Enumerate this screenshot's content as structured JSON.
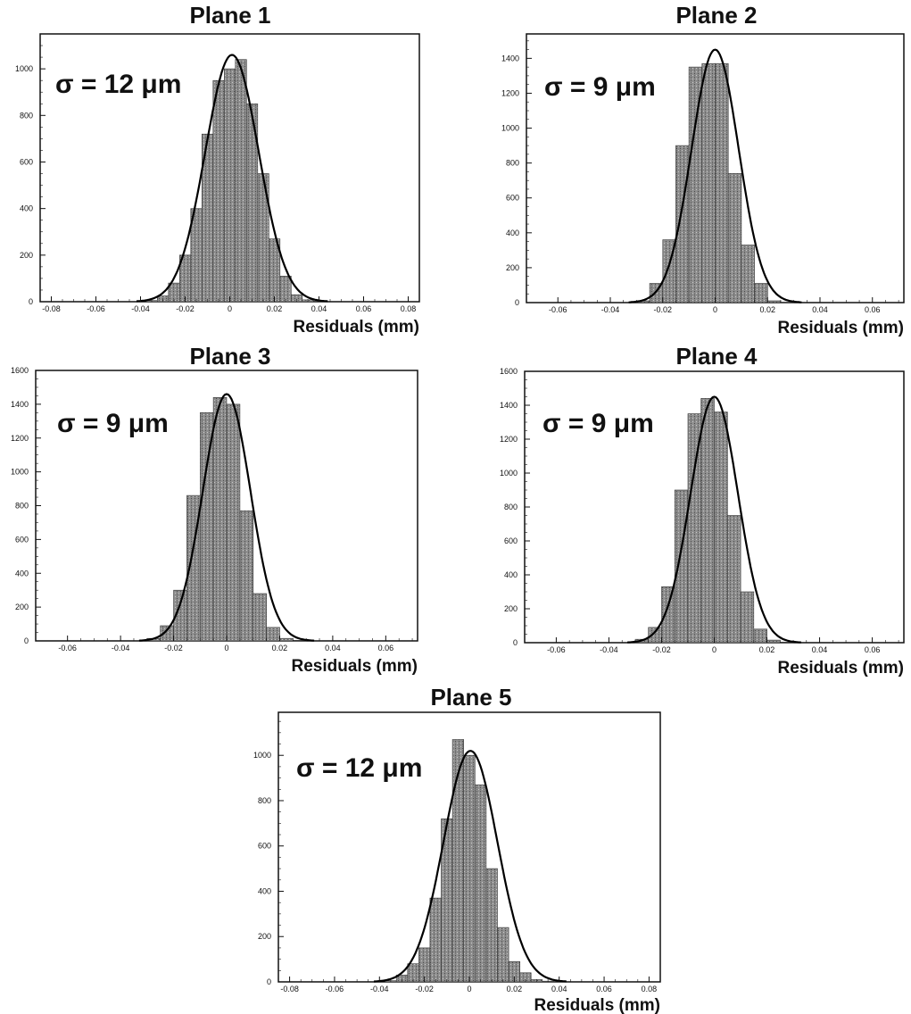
{
  "chart_data": [
    {
      "type": "bar",
      "title": "Plane 1",
      "xlabel": "Residuals (mm)",
      "annotation": "σ = 12 μm",
      "xlim": [
        -0.085,
        0.085
      ],
      "ylim": [
        0,
        1150
      ],
      "xticks": [
        "-0.08",
        "-0.06",
        "-0.04",
        "-0.02",
        "0",
        "0.02",
        "0.04",
        "0.06",
        "0.08"
      ],
      "yticks": [
        "0",
        "200",
        "400",
        "600",
        "800",
        "1000"
      ],
      "bin_width": 0.005,
      "x": [
        -0.035,
        -0.03,
        -0.025,
        -0.02,
        -0.015,
        -0.01,
        -0.005,
        0,
        0.005,
        0.01,
        0.015,
        0.02,
        0.025,
        0.03,
        0.035,
        0.04
      ],
      "values": [
        5,
        25,
        80,
        200,
        400,
        720,
        950,
        1000,
        1040,
        850,
        550,
        270,
        110,
        30,
        8,
        2
      ],
      "fit": {
        "shape": "gaussian",
        "mean": 0.001,
        "sigma_mm": 0.012,
        "peak": 1060
      }
    },
    {
      "type": "bar",
      "title": "Plane 2",
      "xlabel": "Residuals (mm)",
      "annotation": "σ = 9 μm",
      "xlim": [
        -0.072,
        0.072
      ],
      "ylim": [
        0,
        1540
      ],
      "xticks": [
        "-0.06",
        "-0.04",
        "-0.02",
        "0",
        "0.02",
        "0.04",
        "0.06"
      ],
      "yticks": [
        "0",
        "200",
        "400",
        "600",
        "800",
        "1000",
        "1200",
        "1400"
      ],
      "bin_width": 0.005,
      "x": [
        -0.0275,
        -0.0225,
        -0.0175,
        -0.0125,
        -0.0075,
        -0.0025,
        0.0025,
        0.0075,
        0.0125,
        0.0175,
        0.0225,
        0.0275
      ],
      "values": [
        10,
        110,
        360,
        900,
        1350,
        1370,
        1370,
        740,
        330,
        110,
        10,
        2
      ],
      "fit": {
        "shape": "gaussian",
        "mean": 0.0,
        "sigma_mm": 0.009,
        "peak": 1450
      }
    },
    {
      "type": "bar",
      "title": "Plane 3",
      "xlabel": "Residuals (mm)",
      "annotation": "σ = 9 μm",
      "xlim": [
        -0.072,
        0.072
      ],
      "ylim": [
        0,
        1600
      ],
      "xticks": [
        "-0.06",
        "-0.04",
        "-0.02",
        "0",
        "0.02",
        "0.04",
        "0.06"
      ],
      "yticks": [
        "0",
        "200",
        "400",
        "600",
        "800",
        "1000",
        "1200",
        "1400",
        "1600"
      ],
      "bin_width": 0.005,
      "x": [
        -0.0275,
        -0.0225,
        -0.0175,
        -0.0125,
        -0.0075,
        -0.0025,
        0.0025,
        0.0075,
        0.0125,
        0.0175,
        0.0225,
        0.0275
      ],
      "values": [
        15,
        90,
        300,
        860,
        1350,
        1440,
        1400,
        770,
        280,
        80,
        15,
        3
      ],
      "fit": {
        "shape": "gaussian",
        "mean": 0.0,
        "sigma_mm": 0.009,
        "peak": 1460
      }
    },
    {
      "type": "bar",
      "title": "Plane 4",
      "xlabel": "Residuals (mm)",
      "annotation": "σ = 9 μm",
      "xlim": [
        -0.072,
        0.072
      ],
      "ylim": [
        0,
        1600
      ],
      "xticks": [
        "-0.06",
        "-0.04",
        "-0.02",
        "0",
        "0.02",
        "0.04",
        "0.06"
      ],
      "yticks": [
        "0",
        "200",
        "400",
        "600",
        "800",
        "1000",
        "1200",
        "1400",
        "1600"
      ],
      "bin_width": 0.005,
      "x": [
        -0.0275,
        -0.0225,
        -0.0175,
        -0.0125,
        -0.0075,
        -0.0025,
        0.0025,
        0.0075,
        0.0125,
        0.0175,
        0.0225,
        0.0275
      ],
      "values": [
        20,
        90,
        330,
        900,
        1350,
        1440,
        1360,
        750,
        300,
        80,
        15,
        3
      ],
      "fit": {
        "shape": "gaussian",
        "mean": 0.0,
        "sigma_mm": 0.009,
        "peak": 1450
      }
    },
    {
      "type": "bar",
      "title": "Plane 5",
      "xlabel": "Residuals (mm)",
      "annotation": "σ = 12 μm",
      "xlim": [
        -0.085,
        0.085
      ],
      "ylim": [
        0,
        1190
      ],
      "xticks": [
        "-0.08",
        "-0.06",
        "-0.04",
        "-0.02",
        "0",
        "0.02",
        "0.04",
        "0.06",
        "0.08"
      ],
      "yticks": [
        "0",
        "200",
        "400",
        "600",
        "800",
        "1000"
      ],
      "bin_width": 0.005,
      "x": [
        -0.035,
        -0.03,
        -0.025,
        -0.02,
        -0.015,
        -0.01,
        -0.005,
        0,
        0.005,
        0.01,
        0.015,
        0.02,
        0.025,
        0.03,
        0.035,
        0.04
      ],
      "values": [
        5,
        30,
        80,
        150,
        370,
        720,
        1070,
        1000,
        870,
        500,
        240,
        90,
        40,
        10,
        3,
        1
      ],
      "fit": {
        "shape": "gaussian",
        "mean": 0.0005,
        "sigma_mm": 0.012,
        "peak": 1020
      }
    }
  ],
  "style": {
    "frame": "#111111",
    "bar_fill": "#8e8e8e",
    "bar_edge": "#333333",
    "curve": "#000000"
  }
}
